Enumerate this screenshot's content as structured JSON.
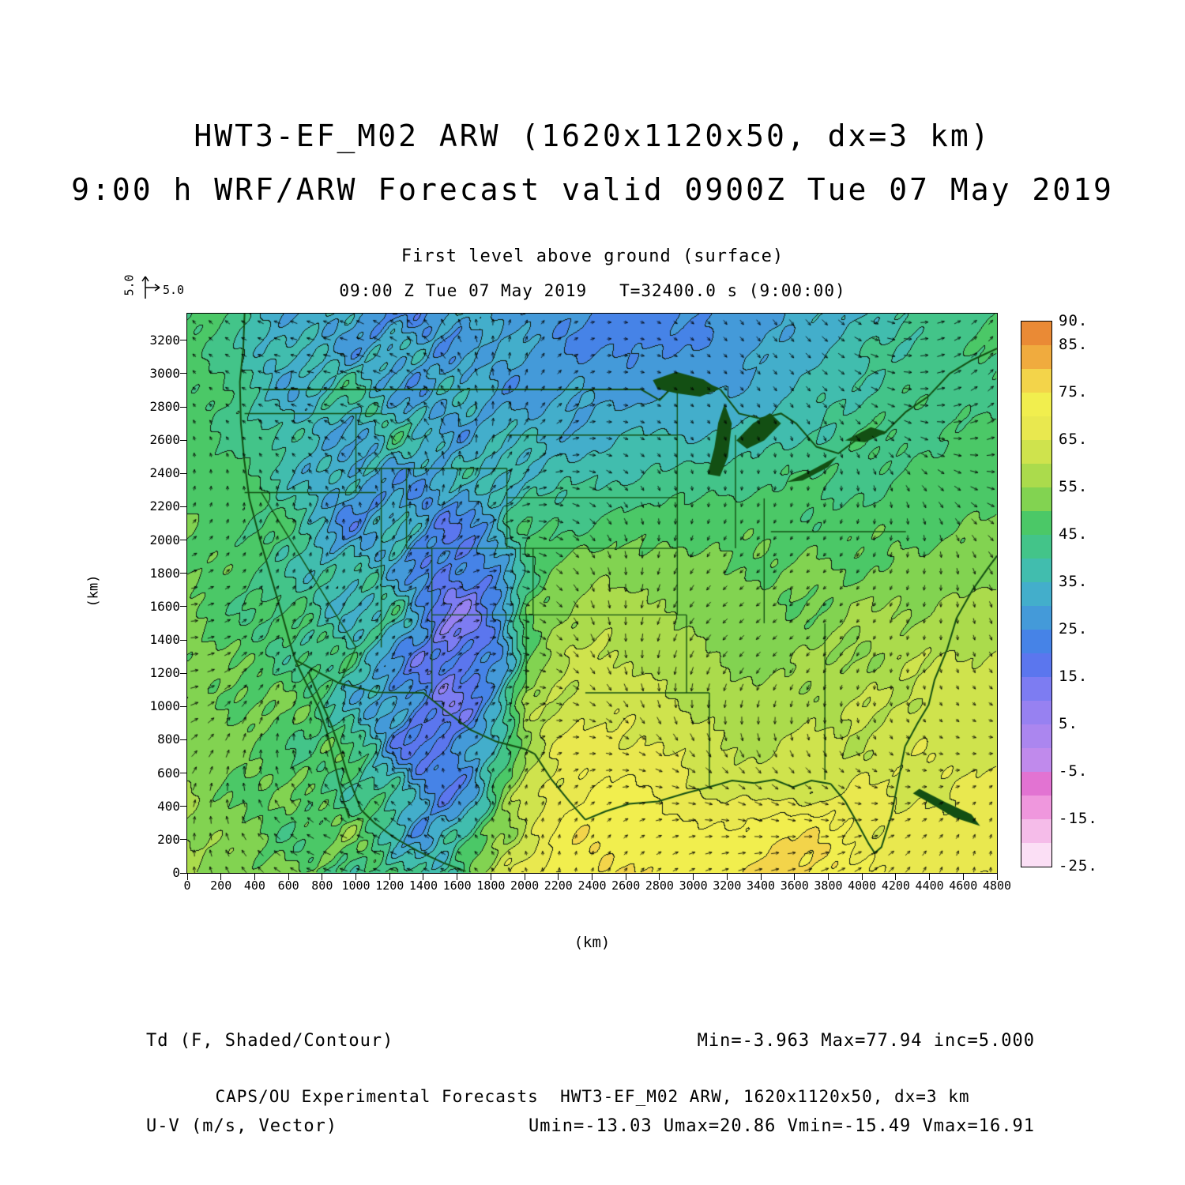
{
  "titles": {
    "line1": "HWT3-EF_M02 ARW (1620x1120x50, dx=3 km)",
    "line2": "9:00 h WRF/ARW Forecast valid 0900Z Tue 07 May 2019",
    "level": "First level above ground (surface)",
    "valid": "09:00 Z Tue 07 May 2019   T=32400.0 s (9:00:00)"
  },
  "vector_scale": {
    "u": "5.0",
    "v": "5.0"
  },
  "axes": {
    "x": {
      "label": "(km)",
      "min": 0,
      "max": 4800,
      "step": 200
    },
    "y": {
      "label": "(km)",
      "min": 0,
      "max": 3360,
      "step": 200,
      "last_label": 3200
    }
  },
  "legend": {
    "field_line1": "Td (F, Shaded/Contour)",
    "field_line2": "U-V (m/s, Vector)",
    "stats_line1": "Min=-3.963 Max=77.94 inc=5.000",
    "stats_line2": "Umin=-13.03 Umax=20.86 Vmin=-15.49 Vmax=16.91"
  },
  "footer": "CAPS/OU Experimental Forecasts  HWT3-EF_M02 ARW, 1620x1120x50, dx=3 km",
  "chart_data": {
    "type": "heatmap",
    "title": "HWT3-EF_M02 ARW (1620x1120x50, dx=3 km)",
    "subtitle": "9:00 h WRF/ARW Forecast valid 0900Z Tue 07 May 2019",
    "level": "First level above ground (surface)",
    "valid_time": "09:00 Z Tue 07 May 2019",
    "model_time": "T=32400.0 s (9:00:00)",
    "shaded_field": "Td (F, Shaded/Contour)",
    "vector_field": "U-V (m/s, Vector)",
    "xlabel": "(km)",
    "ylabel": "(km)",
    "xlim": [
      0,
      4800
    ],
    "ylim": [
      0,
      3360
    ],
    "contour_interval_f": 5,
    "stats": {
      "min_f": -3.963,
      "max_f": 77.94,
      "inc_f": 5.0,
      "umin_ms": -13.03,
      "umax_ms": 20.86,
      "vmin_ms": -15.49,
      "vmax_ms": 16.91
    },
    "levels_f": [
      -25,
      -20,
      -15,
      -10,
      -5,
      0,
      5,
      10,
      15,
      20,
      25,
      30,
      35,
      40,
      45,
      50,
      55,
      60,
      65,
      70,
      75,
      80,
      85,
      90
    ],
    "colors_bottom_to_top": [
      "#fbdff5",
      "#f5bce9",
      "#ef97dd",
      "#e273d2",
      "#c08aec",
      "#ab86ef",
      "#9781f1",
      "#7d7cf2",
      "#5b76ee",
      "#4683e7",
      "#449ad9",
      "#43aecb",
      "#41bdae",
      "#43c489",
      "#4bc867",
      "#82d351",
      "#abdb4c",
      "#cfe34d",
      "#e9e84f",
      "#f1ee4e",
      "#f3d44a",
      "#f0ab3e",
      "#ea8a35"
    ],
    "colorbar_labels_top_to_bottom": [
      "90.",
      "85.",
      "75.",
      "65.",
      "55.",
      "45.",
      "35.",
      "25.",
      "15.",
      "5.",
      "-5.",
      "-15.",
      "-25."
    ],
    "colorbar_label_values": [
      90,
      85,
      75,
      65,
      55,
      45,
      35,
      25,
      15,
      5,
      -5,
      -15,
      -25
    ],
    "grid_note": "Approximate surface dewpoint (F) read from the shaded map on a 32x22 grid; rows ordered north (y=3360 km) to south (y=0 km), columns west (x=0) to east (x=4800 km).",
    "td_grid_f": [
      [
        46,
        45,
        40,
        33,
        30,
        34,
        32,
        30,
        28,
        26,
        28,
        30,
        28,
        27,
        26,
        25,
        24,
        23,
        24,
        25,
        24,
        26,
        28,
        30,
        33,
        35,
        37,
        39,
        41,
        43,
        44,
        45
      ],
      [
        46,
        45,
        41,
        34,
        31,
        35,
        33,
        31,
        29,
        27,
        29,
        31,
        29,
        28,
        27,
        25,
        24,
        23,
        24,
        25,
        25,
        27,
        29,
        31,
        34,
        36,
        38,
        40,
        42,
        43,
        44,
        45
      ],
      [
        47,
        45,
        42,
        36,
        33,
        36,
        34,
        32,
        30,
        29,
        30,
        32,
        30,
        29,
        28,
        27,
        26,
        25,
        26,
        27,
        27,
        29,
        31,
        33,
        35,
        37,
        39,
        41,
        42,
        43,
        44,
        45
      ],
      [
        47,
        46,
        43,
        38,
        34,
        36,
        35,
        33,
        31,
        30,
        31,
        33,
        31,
        30,
        29,
        28,
        28,
        28,
        29,
        30,
        30,
        31,
        33,
        35,
        37,
        38,
        40,
        42,
        43,
        44,
        45,
        45
      ],
      [
        48,
        46,
        44,
        40,
        35,
        35,
        34,
        34,
        33,
        31,
        32,
        34,
        33,
        32,
        31,
        30,
        31,
        32,
        33,
        33,
        33,
        34,
        36,
        38,
        39,
        40,
        42,
        43,
        44,
        45,
        45,
        46
      ],
      [
        48,
        46,
        45,
        42,
        36,
        34,
        32,
        33,
        35,
        33,
        33,
        35,
        35,
        34,
        34,
        33,
        35,
        36,
        37,
        37,
        37,
        38,
        39,
        41,
        42,
        42,
        43,
        44,
        45,
        45,
        46,
        46
      ],
      [
        49,
        47,
        45,
        43,
        38,
        33,
        30,
        31,
        34,
        31,
        30,
        33,
        36,
        37,
        37,
        37,
        39,
        40,
        41,
        41,
        41,
        42,
        43,
        44,
        44,
        44,
        45,
        45,
        46,
        46,
        47,
        47
      ],
      [
        49,
        47,
        46,
        44,
        40,
        34,
        29,
        30,
        33,
        28,
        26,
        28,
        34,
        40,
        41,
        42,
        43,
        44,
        45,
        45,
        45,
        45,
        46,
        46,
        46,
        46,
        46,
        47,
        47,
        47,
        48,
        48
      ],
      [
        50,
        48,
        46,
        44,
        41,
        35,
        30,
        32,
        34,
        26,
        22,
        24,
        32,
        43,
        45,
        46,
        47,
        48,
        48,
        48,
        48,
        48,
        48,
        48,
        48,
        48,
        48,
        48,
        49,
        49,
        49,
        50
      ],
      [
        50,
        48,
        47,
        45,
        42,
        36,
        31,
        33,
        35,
        25,
        19,
        21,
        30,
        45,
        48,
        50,
        51,
        51,
        51,
        50,
        50,
        50,
        50,
        49,
        49,
        49,
        49,
        50,
        50,
        51,
        51,
        52
      ],
      [
        51,
        49,
        47,
        45,
        43,
        38,
        33,
        35,
        34,
        24,
        17,
        19,
        28,
        46,
        51,
        53,
        54,
        54,
        53,
        52,
        52,
        51,
        51,
        50,
        50,
        50,
        51,
        52,
        52,
        53,
        54,
        55
      ],
      [
        51,
        49,
        48,
        46,
        44,
        40,
        35,
        36,
        33,
        23,
        16,
        18,
        27,
        47,
        53,
        56,
        57,
        56,
        55,
        54,
        53,
        52,
        52,
        51,
        51,
        52,
        53,
        54,
        55,
        56,
        57,
        58
      ],
      [
        52,
        50,
        48,
        46,
        45,
        42,
        37,
        36,
        31,
        22,
        14,
        17,
        26,
        48,
        55,
        58,
        59,
        58,
        57,
        56,
        54,
        53,
        53,
        52,
        53,
        54,
        55,
        56,
        57,
        58,
        59,
        60
      ],
      [
        52,
        50,
        49,
        47,
        46,
        44,
        39,
        35,
        29,
        21,
        13,
        17,
        27,
        50,
        57,
        60,
        61,
        60,
        59,
        57,
        55,
        54,
        54,
        54,
        55,
        56,
        57,
        58,
        59,
        60,
        61,
        61
      ],
      [
        53,
        51,
        49,
        48,
        46,
        45,
        41,
        34,
        28,
        20,
        14,
        18,
        29,
        52,
        59,
        62,
        63,
        62,
        61,
        59,
        57,
        55,
        55,
        56,
        57,
        58,
        59,
        60,
        61,
        62,
        62,
        62
      ],
      [
        53,
        51,
        50,
        48,
        47,
        46,
        43,
        36,
        27,
        20,
        15,
        20,
        33,
        54,
        61,
        64,
        65,
        64,
        63,
        61,
        59,
        57,
        57,
        58,
        59,
        60,
        60,
        61,
        62,
        62,
        63,
        63
      ],
      [
        54,
        52,
        50,
        49,
        47,
        46,
        44,
        38,
        28,
        21,
        17,
        24,
        38,
        56,
        63,
        66,
        67,
        66,
        65,
        63,
        61,
        59,
        59,
        60,
        61,
        61,
        62,
        62,
        63,
        63,
        64,
        64
      ],
      [
        54,
        52,
        51,
        49,
        48,
        47,
        45,
        40,
        30,
        22,
        20,
        28,
        44,
        58,
        65,
        68,
        69,
        68,
        67,
        65,
        63,
        61,
        61,
        62,
        62,
        62,
        63,
        63,
        64,
        64,
        65,
        65
      ],
      [
        55,
        53,
        51,
        50,
        48,
        47,
        45,
        42,
        33,
        24,
        24,
        34,
        50,
        61,
        67,
        70,
        71,
        70,
        69,
        67,
        65,
        63,
        63,
        63,
        63,
        63,
        64,
        64,
        65,
        65,
        66,
        66
      ],
      [
        55,
        53,
        52,
        50,
        49,
        47,
        46,
        43,
        36,
        27,
        30,
        40,
        55,
        63,
        69,
        72,
        73,
        72,
        71,
        70,
        69,
        70,
        71,
        72,
        71,
        69,
        67,
        66,
        66,
        66,
        67,
        67
      ],
      [
        56,
        54,
        52,
        51,
        49,
        48,
        46,
        44,
        39,
        31,
        36,
        46,
        59,
        65,
        70,
        73,
        74,
        74,
        73,
        72,
        72,
        73,
        75,
        76,
        75,
        72,
        69,
        67,
        67,
        67,
        68,
        68
      ],
      [
        56,
        54,
        53,
        51,
        50,
        48,
        47,
        45,
        42,
        36,
        42,
        52,
        62,
        67,
        71,
        74,
        75,
        75,
        74,
        74,
        73,
        74,
        76,
        77,
        76,
        73,
        70,
        68,
        68,
        68,
        69,
        69
      ]
    ]
  }
}
